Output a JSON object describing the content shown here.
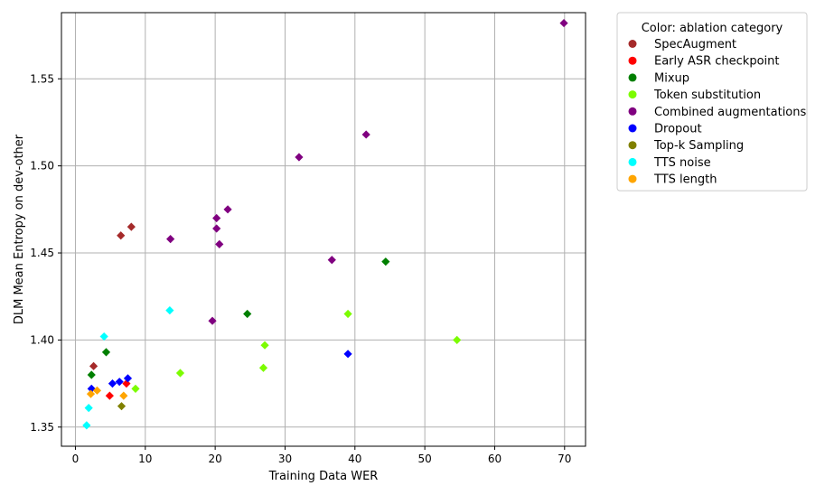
{
  "chart_data": {
    "type": "scatter",
    "title": "",
    "xlabel": "Training Data WER",
    "ylabel": "DLM Mean Entropy on dev-other",
    "xlim": [
      -2,
      73
    ],
    "ylim": [
      1.339,
      1.588
    ],
    "xticks": [
      0,
      10,
      20,
      30,
      40,
      50,
      60,
      70
    ],
    "yticks": [
      1.35,
      1.4,
      1.45,
      1.5,
      1.55
    ],
    "ytick_labels": [
      "1.35",
      "1.40",
      "1.45",
      "1.50",
      "1.55"
    ],
    "grid": true,
    "legend": {
      "title": "Color: ablation category",
      "placement": "outside-right"
    },
    "series": [
      {
        "name": "SpecAugment",
        "color": "#a52a2a",
        "points": [
          [
            2.6,
            1.385
          ],
          [
            6.5,
            1.46
          ],
          [
            8.0,
            1.465
          ]
        ]
      },
      {
        "name": "Early ASR checkpoint",
        "color": "#ff0000",
        "points": [
          [
            4.9,
            1.368
          ],
          [
            7.3,
            1.375
          ]
        ]
      },
      {
        "name": "Mixup",
        "color": "#007f00",
        "points": [
          [
            2.3,
            1.38
          ],
          [
            4.4,
            1.393
          ],
          [
            24.6,
            1.415
          ],
          [
            44.4,
            1.445
          ]
        ]
      },
      {
        "name": "Token substitution",
        "color": "#7cfc00",
        "points": [
          [
            8.6,
            1.372
          ],
          [
            15.0,
            1.381
          ],
          [
            26.9,
            1.384
          ],
          [
            27.1,
            1.397
          ],
          [
            39.0,
            1.415
          ],
          [
            54.6,
            1.4
          ]
        ]
      },
      {
        "name": "Combined augmentations",
        "color": "#800080",
        "points": [
          [
            13.6,
            1.458
          ],
          [
            19.6,
            1.411
          ],
          [
            20.2,
            1.47
          ],
          [
            20.2,
            1.464
          ],
          [
            20.6,
            1.455
          ],
          [
            21.8,
            1.475
          ],
          [
            32.0,
            1.505
          ],
          [
            36.7,
            1.446
          ],
          [
            41.6,
            1.518
          ],
          [
            69.9,
            1.582
          ]
        ]
      },
      {
        "name": "Dropout",
        "color": "#0000ff",
        "points": [
          [
            2.3,
            1.372
          ],
          [
            5.3,
            1.375
          ],
          [
            6.3,
            1.376
          ],
          [
            7.5,
            1.378
          ],
          [
            39.0,
            1.392
          ]
        ]
      },
      {
        "name": "Top-k Sampling",
        "color": "#808000",
        "points": [
          [
            6.6,
            1.362
          ]
        ]
      },
      {
        "name": "TTS noise",
        "color": "#00ffff",
        "points": [
          [
            1.6,
            1.351
          ],
          [
            1.9,
            1.361
          ],
          [
            4.1,
            1.402
          ],
          [
            13.5,
            1.417
          ]
        ]
      },
      {
        "name": "TTS length",
        "color": "#ffa500",
        "points": [
          [
            2.2,
            1.369
          ],
          [
            3.1,
            1.371
          ],
          [
            6.9,
            1.368
          ]
        ]
      }
    ]
  }
}
